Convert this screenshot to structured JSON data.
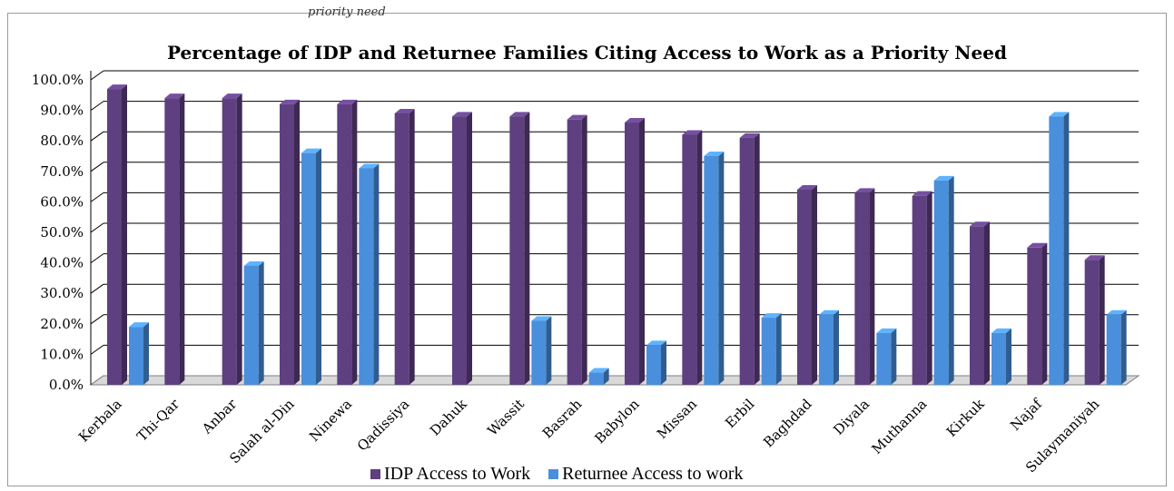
{
  "top_text": "priority need",
  "colors": {
    "idp": "#5e3f80",
    "returnee": "#4a8fdc",
    "grid": "#000000"
  },
  "chart_data": {
    "type": "bar",
    "title": "Percentage of IDP and Returnee Families Citing Access to Work as a Priority Need",
    "xlabel": "",
    "ylabel": "",
    "ylim": [
      0,
      100
    ],
    "y_ticks": [
      "0.0%",
      "10.0%",
      "20.0%",
      "30.0%",
      "40.0%",
      "50.0%",
      "60.0%",
      "70.0%",
      "80.0%",
      "90.0%",
      "100.0%"
    ],
    "grid": true,
    "legend_position": "bottom",
    "categories": [
      "Kerbala",
      "Thi-Qar",
      "Anbar",
      "Salah al-Din",
      "Ninewa",
      "Qadissiya",
      "Dahuk",
      "Wassit",
      "Basrah",
      "Babylon",
      "Missan",
      "Erbil",
      "Baghdad",
      "Diyala",
      "Muthanna",
      "Kirkuk",
      "Najaf",
      "Sulaymaniyah"
    ],
    "series": [
      {
        "name": "IDP Access to Work",
        "values": [
          97,
          94,
          94,
          92,
          92,
          89,
          88,
          88,
          87,
          86,
          82,
          81,
          64,
          63,
          62,
          52,
          45,
          41
        ]
      },
      {
        "name": "Returnee Access to work",
        "values": [
          19,
          0,
          39,
          76,
          71,
          0,
          0,
          21,
          4,
          13,
          75,
          22,
          23,
          17,
          67,
          17,
          88,
          23
        ]
      }
    ]
  }
}
